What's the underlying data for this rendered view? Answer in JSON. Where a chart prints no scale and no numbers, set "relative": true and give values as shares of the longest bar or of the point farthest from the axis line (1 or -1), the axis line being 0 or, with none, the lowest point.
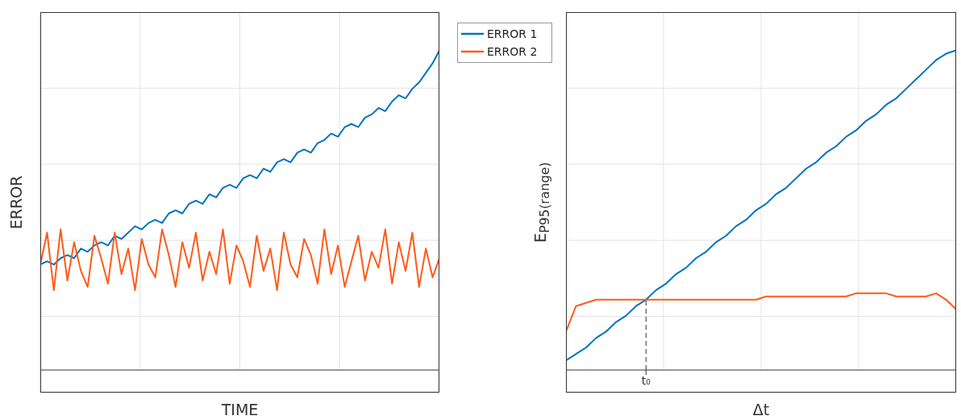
{
  "chart_data": [
    {
      "type": "line",
      "xlabel": "TIME",
      "ylabel": "ERROR",
      "relative": true,
      "grid": true,
      "legend": "top right",
      "marker": "none",
      "line_style": "solid",
      "categories": [
        null,
        null,
        null,
        null,
        null,
        null,
        null,
        null,
        null,
        null,
        null,
        null,
        null,
        null,
        null,
        null,
        null,
        null,
        null,
        null,
        null,
        null,
        null,
        null,
        null,
        null,
        null,
        null,
        null,
        null,
        null,
        null,
        null,
        null,
        null,
        null,
        null,
        null,
        null,
        null,
        null,
        null,
        null,
        null,
        null,
        null,
        null,
        null,
        null,
        null,
        null,
        null,
        null,
        null,
        null,
        null,
        null,
        null,
        null,
        null
      ],
      "series": [
        {
          "name": "ERROR 1",
          "color": "#0072bd",
          "values": [
            0.33,
            0.34,
            0.33,
            0.35,
            0.36,
            0.35,
            0.38,
            0.37,
            0.39,
            0.4,
            0.39,
            0.42,
            0.41,
            0.43,
            0.45,
            0.44,
            0.46,
            0.47,
            0.46,
            0.49,
            0.5,
            0.49,
            0.52,
            0.53,
            0.52,
            0.55,
            0.54,
            0.57,
            0.58,
            0.57,
            0.6,
            0.61,
            0.6,
            0.63,
            0.62,
            0.65,
            0.66,
            0.65,
            0.68,
            0.69,
            0.68,
            0.71,
            0.72,
            0.74,
            0.73,
            0.76,
            0.77,
            0.76,
            0.79,
            0.8,
            0.82,
            0.81,
            0.84,
            0.86,
            0.85,
            0.88,
            0.9,
            0.93,
            0.96,
            1.0
          ]
        },
        {
          "name": "ERROR 2",
          "color": "#ff5a1a",
          "values": [
            0.33,
            0.43,
            0.25,
            0.44,
            0.28,
            0.4,
            0.31,
            0.26,
            0.42,
            0.35,
            0.27,
            0.43,
            0.3,
            0.38,
            0.25,
            0.41,
            0.33,
            0.29,
            0.44,
            0.36,
            0.26,
            0.4,
            0.32,
            0.43,
            0.28,
            0.37,
            0.3,
            0.44,
            0.27,
            0.39,
            0.34,
            0.26,
            0.42,
            0.31,
            0.38,
            0.25,
            0.43,
            0.33,
            0.29,
            0.41,
            0.36,
            0.27,
            0.44,
            0.3,
            0.39,
            0.26,
            0.34,
            0.42,
            0.28,
            0.37,
            0.32,
            0.44,
            0.27,
            0.4,
            0.31,
            0.43,
            0.26,
            0.38,
            0.29,
            0.35
          ]
        }
      ]
    },
    {
      "type": "line",
      "xlabel": "Δt",
      "ylabel": "E$_{P95(range)}$",
      "relative": true,
      "grid": true,
      "marker": "none",
      "line_style": "solid",
      "categories": [
        null,
        null,
        null,
        null,
        null,
        null,
        null,
        null,
        null,
        null,
        null,
        null,
        null,
        null,
        null,
        null,
        null,
        null,
        null,
        null,
        null,
        null,
        null,
        null,
        null,
        null,
        null,
        null,
        null,
        null,
        null,
        null,
        null,
        null,
        null,
        null,
        null,
        null,
        null,
        null
      ],
      "annotations": [
        "t₀"
      ],
      "series": [
        {
          "color": "#0072bd",
          "values": [
            0.03,
            0.05,
            0.07,
            0.1,
            0.12,
            0.15,
            0.17,
            0.2,
            0.22,
            0.25,
            0.27,
            0.3,
            0.32,
            0.35,
            0.37,
            0.4,
            0.42,
            0.45,
            0.47,
            0.5,
            0.52,
            0.55,
            0.57,
            0.6,
            0.63,
            0.65,
            0.68,
            0.7,
            0.73,
            0.75,
            0.78,
            0.8,
            0.83,
            0.85,
            0.88,
            0.91,
            0.94,
            0.97,
            0.99,
            1.0
          ]
        },
        {
          "color": "#ff5a1a",
          "values": [
            0.12,
            0.2,
            0.21,
            0.22,
            0.22,
            0.22,
            0.22,
            0.22,
            0.22,
            0.22,
            0.22,
            0.22,
            0.22,
            0.22,
            0.22,
            0.22,
            0.22,
            0.22,
            0.22,
            0.22,
            0.23,
            0.23,
            0.23,
            0.23,
            0.23,
            0.23,
            0.23,
            0.23,
            0.23,
            0.24,
            0.24,
            0.24,
            0.24,
            0.23,
            0.23,
            0.23,
            0.23,
            0.24,
            0.22,
            0.19
          ]
        }
      ]
    }
  ]
}
